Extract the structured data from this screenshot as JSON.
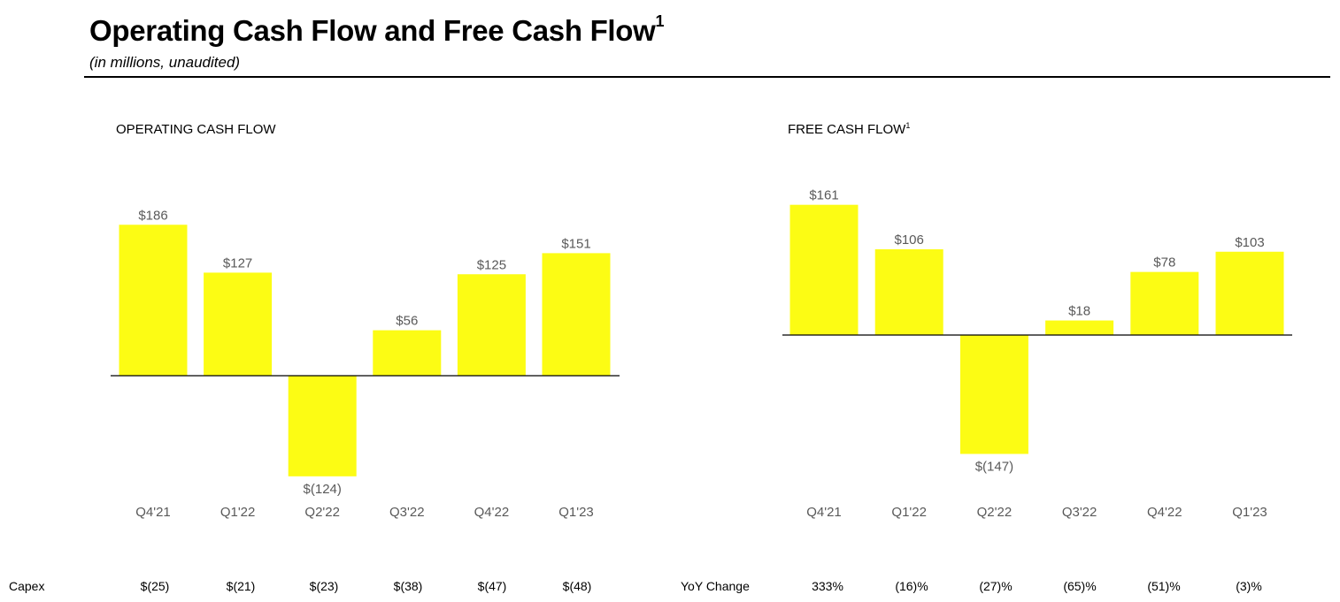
{
  "header": {
    "title": "Operating Cash Flow and Free Cash Flow",
    "title_footnote": "1",
    "subtitle": "(in millions, unaudited)"
  },
  "colors": {
    "bar": "#FCFC14",
    "value_text": "#595959",
    "axis": "#000000"
  },
  "chart_data": [
    {
      "type": "bar",
      "title": "OPERATING CASH FLOW",
      "title_footnote": "",
      "categories": [
        "Q4'21",
        "Q1'22",
        "Q2'22",
        "Q3'22",
        "Q4'22",
        "Q1'23"
      ],
      "values": [
        186,
        127,
        -124,
        56,
        125,
        151
      ],
      "labels": [
        "$186",
        "$127",
        "$(124)",
        "$56",
        "$125",
        "$151"
      ],
      "unit": "$ millions"
    },
    {
      "type": "bar",
      "title": "FREE CASH FLOW",
      "title_footnote": "1",
      "categories": [
        "Q4'21",
        "Q1'22",
        "Q2'22",
        "Q3'22",
        "Q4'22",
        "Q1'23"
      ],
      "values": [
        161,
        106,
        -147,
        18,
        78,
        103
      ],
      "labels": [
        "$161",
        "$106",
        "$(147)",
        "$18",
        "$78",
        "$103"
      ],
      "unit": "$ millions"
    }
  ],
  "capex_row": {
    "label": "Capex",
    "values": [
      "$(25)",
      "$(21)",
      "$(23)",
      "$(38)",
      "$(47)",
      "$(48)"
    ]
  },
  "yoy_row": {
    "label": "YoY Change",
    "values": [
      "333%",
      "(16)%",
      "(27)%",
      "(65)%",
      "(51)%",
      "(3)%"
    ]
  }
}
